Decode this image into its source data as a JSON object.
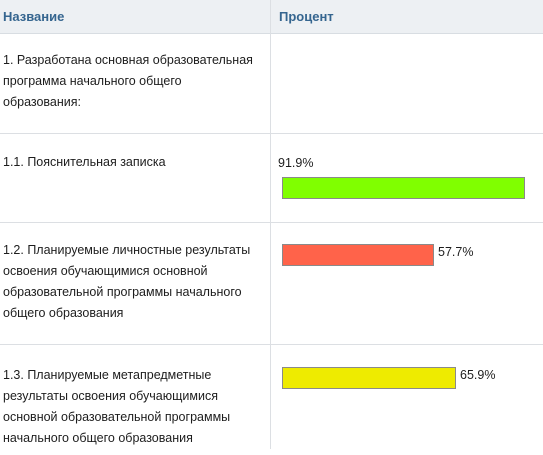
{
  "header": {
    "name": "Название",
    "percent": "Процент"
  },
  "rows": [
    {
      "name": "1. Разработана основная образовательная программа начального общего образования:",
      "percent_label": ""
    },
    {
      "name": "1.1. Пояснительная записка",
      "percent_label": "91.9%",
      "percent": 91.9,
      "color": "#80ff00"
    },
    {
      "name": "1.2. Планируемые личностные результаты освоения обучающимися основной образовательной программы начального общего образования",
      "percent_label": "57.7%",
      "percent": 57.7,
      "color": "#ff634a"
    },
    {
      "name": "1.3. Планируемые метапредметные результаты освоения обучающимися основной образовательной программы начального общего образования",
      "percent_label": "65.9%",
      "percent": 65.9,
      "color": "#eeeb00"
    }
  ]
}
